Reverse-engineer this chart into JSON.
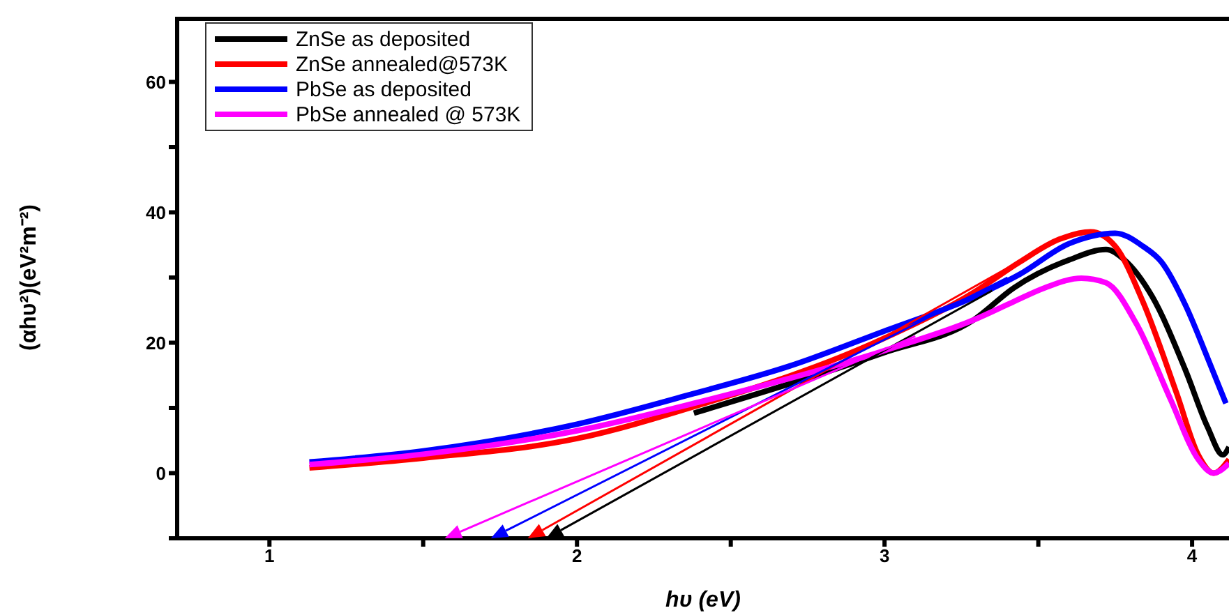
{
  "chart_data": {
    "type": "line",
    "xlabel": "hυ (eV)",
    "ylabel": "(αhυ²)(eV²m⁻²)",
    "xlim": [
      0.7,
      4.12
    ],
    "ylim": [
      -10,
      70
    ],
    "xticks": [
      1,
      {
        "value": 1.5,
        "label": null
      },
      2,
      {
        "value": 2.5,
        "label": null
      },
      3,
      {
        "value": 3.5,
        "label": null
      },
      4
    ],
    "yticks": [
      {
        "value": -10,
        "label": null
      },
      0,
      {
        "value": 10,
        "label": null
      },
      20,
      {
        "value": 30,
        "label": null
      },
      40,
      {
        "value": 50,
        "label": null
      },
      60
    ],
    "legend": "top left",
    "line_style": "solid",
    "series": [
      {
        "name": "ZnSe as deposited",
        "color": "#000000",
        "x": [
          2.38,
          3.0,
          3.29,
          3.42,
          3.6,
          3.72,
          3.78,
          3.87,
          3.98,
          4.05,
          4.1,
          4.12
        ],
        "values": [
          9.2,
          18.5,
          23.5,
          28.4,
          32.7,
          34.3,
          32.7,
          27.1,
          15.6,
          7.1,
          2.8,
          4.0
        ]
      },
      {
        "name": "ZnSe annealed@573K",
        "color": "#ff0000",
        "x": [
          1.13,
          1.5,
          2.0,
          2.38,
          3.0,
          3.29,
          3.44,
          3.57,
          3.67,
          3.75,
          3.84,
          3.95,
          4.02,
          4.07,
          4.12
        ],
        "values": [
          0.8,
          2.3,
          5.3,
          10.2,
          20.7,
          27.7,
          32.4,
          35.9,
          37.0,
          34.8,
          26.3,
          12.2,
          2.8,
          0.0,
          2.1
        ]
      },
      {
        "name": "PbSe as deposited",
        "color": "#0000ff",
        "x": [
          1.13,
          1.5,
          2.0,
          2.38,
          2.69,
          3.0,
          3.29,
          3.44,
          3.6,
          3.75,
          3.84,
          3.9,
          3.98,
          4.05,
          4.11
        ],
        "values": [
          1.7,
          3.4,
          7.5,
          12.2,
          16.4,
          21.8,
          27.0,
          30.5,
          35.2,
          36.8,
          34.8,
          32.4,
          25.6,
          17.7,
          10.7
        ]
      },
      {
        "name": "PbSe annealed @ 573K",
        "color": "#ff00ff",
        "x": [
          1.13,
          1.5,
          2.0,
          2.38,
          3.0,
          3.29,
          3.42,
          3.52,
          3.64,
          3.72,
          3.82,
          3.93,
          4.02,
          4.07,
          4.12
        ],
        "values": [
          1.3,
          2.9,
          6.5,
          10.7,
          18.8,
          23.5,
          26.3,
          28.4,
          29.9,
          29.2,
          22.8,
          11.3,
          2.1,
          0.0,
          1.5
        ]
      }
    ]
  }
}
